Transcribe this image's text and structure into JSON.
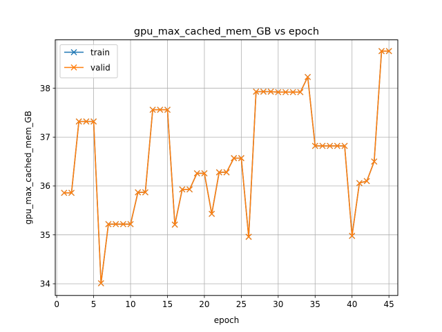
{
  "chart_data": {
    "type": "line",
    "title": "gpu_max_cached_mem_GB vs epoch",
    "xlabel": "epoch",
    "ylabel": "gpu_max_cached_mem_GB",
    "xlim": [
      -0.2,
      46.2
    ],
    "ylim": [
      33.76,
      38.99
    ],
    "xticks": [
      0,
      5,
      10,
      15,
      20,
      25,
      30,
      35,
      40,
      45
    ],
    "yticks": [
      34,
      35,
      36,
      37,
      38
    ],
    "grid": true,
    "legend_position": "top-left",
    "marker": "x",
    "x": [
      1,
      2,
      3,
      4,
      5,
      6,
      7,
      8,
      9,
      10,
      11,
      12,
      13,
      14,
      15,
      16,
      17,
      18,
      19,
      20,
      21,
      22,
      23,
      24,
      25,
      26,
      27,
      28,
      29,
      30,
      31,
      32,
      33,
      34,
      35,
      36,
      37,
      38,
      39,
      40,
      41,
      42,
      43,
      44,
      45
    ],
    "series": [
      {
        "name": "train",
        "color": "#1f77b4",
        "values": [
          35.86,
          35.86,
          37.32,
          37.32,
          37.32,
          34.01,
          35.22,
          35.22,
          35.22,
          35.22,
          35.87,
          35.87,
          37.56,
          37.56,
          37.56,
          35.21,
          35.93,
          35.93,
          36.26,
          36.26,
          35.43,
          36.28,
          36.28,
          36.57,
          36.57,
          34.96,
          37.93,
          37.93,
          37.93,
          37.92,
          37.92,
          37.92,
          37.92,
          38.23,
          36.82,
          36.82,
          36.82,
          36.82,
          36.82,
          34.98,
          36.06,
          36.1,
          36.5,
          38.76,
          38.76
        ]
      },
      {
        "name": "valid",
        "color": "#ff7f0e",
        "values": [
          35.86,
          35.86,
          37.32,
          37.32,
          37.32,
          34.01,
          35.22,
          35.22,
          35.22,
          35.22,
          35.87,
          35.87,
          37.56,
          37.56,
          37.56,
          35.21,
          35.93,
          35.93,
          36.26,
          36.26,
          35.43,
          36.28,
          36.28,
          36.57,
          36.57,
          34.96,
          37.93,
          37.93,
          37.93,
          37.92,
          37.92,
          37.92,
          37.92,
          38.23,
          36.82,
          36.82,
          36.82,
          36.82,
          36.82,
          34.98,
          36.06,
          36.1,
          36.5,
          38.76,
          38.76
        ]
      }
    ]
  }
}
